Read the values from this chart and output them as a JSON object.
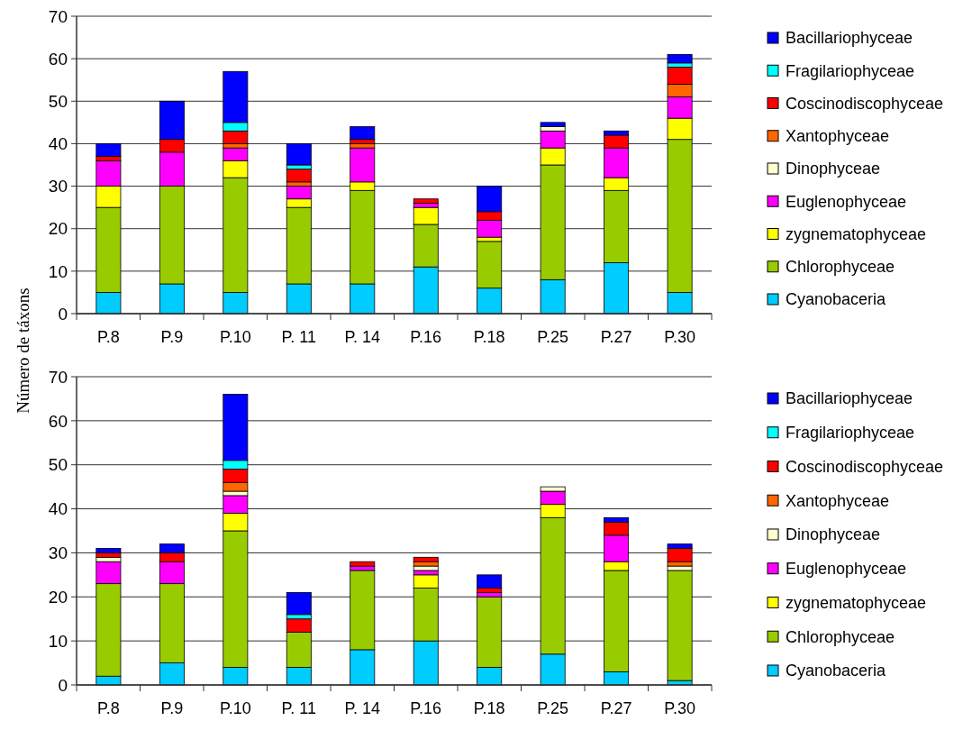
{
  "chart_data": [
    {
      "type": "bar",
      "stacked": true,
      "ylabel": "Número de táxons",
      "categories": [
        "P.8",
        "P.9",
        "P.10",
        "P. 11",
        "P. 14",
        "P.16",
        "P.18",
        "P.25",
        "P.27",
        "P.30"
      ],
      "ylim": [
        0,
        70
      ],
      "yticks": [
        0,
        10,
        20,
        30,
        40,
        50,
        60,
        70
      ],
      "grid": "y",
      "legend": "right",
      "series": [
        {
          "name": "Cyanobaceria",
          "color": "#00ccff",
          "values": [
            5,
            7,
            5,
            7,
            7,
            11,
            6,
            8,
            12,
            5
          ]
        },
        {
          "name": "Chlorophyceae",
          "color": "#99cc00",
          "values": [
            20,
            23,
            27,
            18,
            22,
            10,
            11,
            27,
            17,
            36
          ]
        },
        {
          "name": "zygnematophyceae",
          "color": "#ffff00",
          "values": [
            5,
            0,
            4,
            2,
            2,
            4,
            1,
            4,
            3,
            5
          ]
        },
        {
          "name": "Euglenophyceae",
          "color": "#ff00ff",
          "values": [
            6,
            8,
            3,
            3,
            8,
            1,
            4,
            4,
            7,
            5
          ]
        },
        {
          "name": "Dinophyceae",
          "color": "#ffffcc",
          "values": [
            0,
            0,
            0,
            0,
            0,
            0,
            0,
            1,
            0,
            0
          ]
        },
        {
          "name": "Xantophyceae",
          "color": "#ff6600",
          "values": [
            0,
            0,
            1,
            1,
            1,
            0,
            0,
            0,
            0,
            3
          ]
        },
        {
          "name": "Coscinodiscophyceae",
          "color": "#ff0000",
          "values": [
            1,
            3,
            3,
            3,
            1,
            1,
            2,
            0,
            3,
            4
          ]
        },
        {
          "name": "Fragilariophyceae",
          "color": "#00ffff",
          "values": [
            0,
            0,
            2,
            1,
            0,
            0,
            0,
            0,
            0,
            1
          ]
        },
        {
          "name": "Bacillariophyceae",
          "color": "#0000ff",
          "values": [
            3,
            9,
            12,
            5,
            3,
            0,
            6,
            1,
            1,
            2
          ]
        }
      ]
    },
    {
      "type": "bar",
      "stacked": true,
      "categories": [
        "P.8",
        "P.9",
        "P.10",
        "P. 11",
        "P. 14",
        "P.16",
        "P.18",
        "P.25",
        "P.27",
        "P.30"
      ],
      "ylim": [
        0,
        70
      ],
      "yticks": [
        0,
        10,
        20,
        30,
        40,
        50,
        60,
        70
      ],
      "grid": "y",
      "legend": "right",
      "series": [
        {
          "name": "Cyanobaceria",
          "color": "#00ccff",
          "values": [
            2,
            5,
            4,
            4,
            8,
            10,
            4,
            7,
            3,
            1
          ]
        },
        {
          "name": "Chlorophyceae",
          "color": "#99cc00",
          "values": [
            21,
            18,
            31,
            8,
            18,
            12,
            16,
            31,
            23,
            25
          ]
        },
        {
          "name": "zygnematophyceae",
          "color": "#ffff00",
          "values": [
            0,
            0,
            4,
            0,
            0,
            3,
            0,
            3,
            2,
            0
          ]
        },
        {
          "name": "Euglenophyceae",
          "color": "#ff00ff",
          "values": [
            5,
            5,
            4,
            0,
            1,
            1,
            1,
            3,
            6,
            0
          ]
        },
        {
          "name": "Dinophyceae",
          "color": "#ffffcc",
          "values": [
            1,
            0,
            1,
            0,
            0,
            1,
            0,
            1,
            0,
            1
          ]
        },
        {
          "name": "Xantophyceae",
          "color": "#ff6600",
          "values": [
            0,
            0,
            2,
            0,
            0,
            1,
            0,
            0,
            0,
            1
          ]
        },
        {
          "name": "Coscinodiscophyceae",
          "color": "#ff0000",
          "values": [
            1,
            2,
            3,
            3,
            1,
            1,
            1,
            0,
            3,
            3
          ]
        },
        {
          "name": "Fragilariophyceae",
          "color": "#00ffff",
          "values": [
            0,
            0,
            2,
            1,
            0,
            0,
            0,
            0,
            0,
            0
          ]
        },
        {
          "name": "Bacillariophyceae",
          "color": "#0000ff",
          "values": [
            1,
            2,
            15,
            5,
            0,
            0,
            3,
            0,
            1,
            1
          ]
        }
      ]
    }
  ]
}
